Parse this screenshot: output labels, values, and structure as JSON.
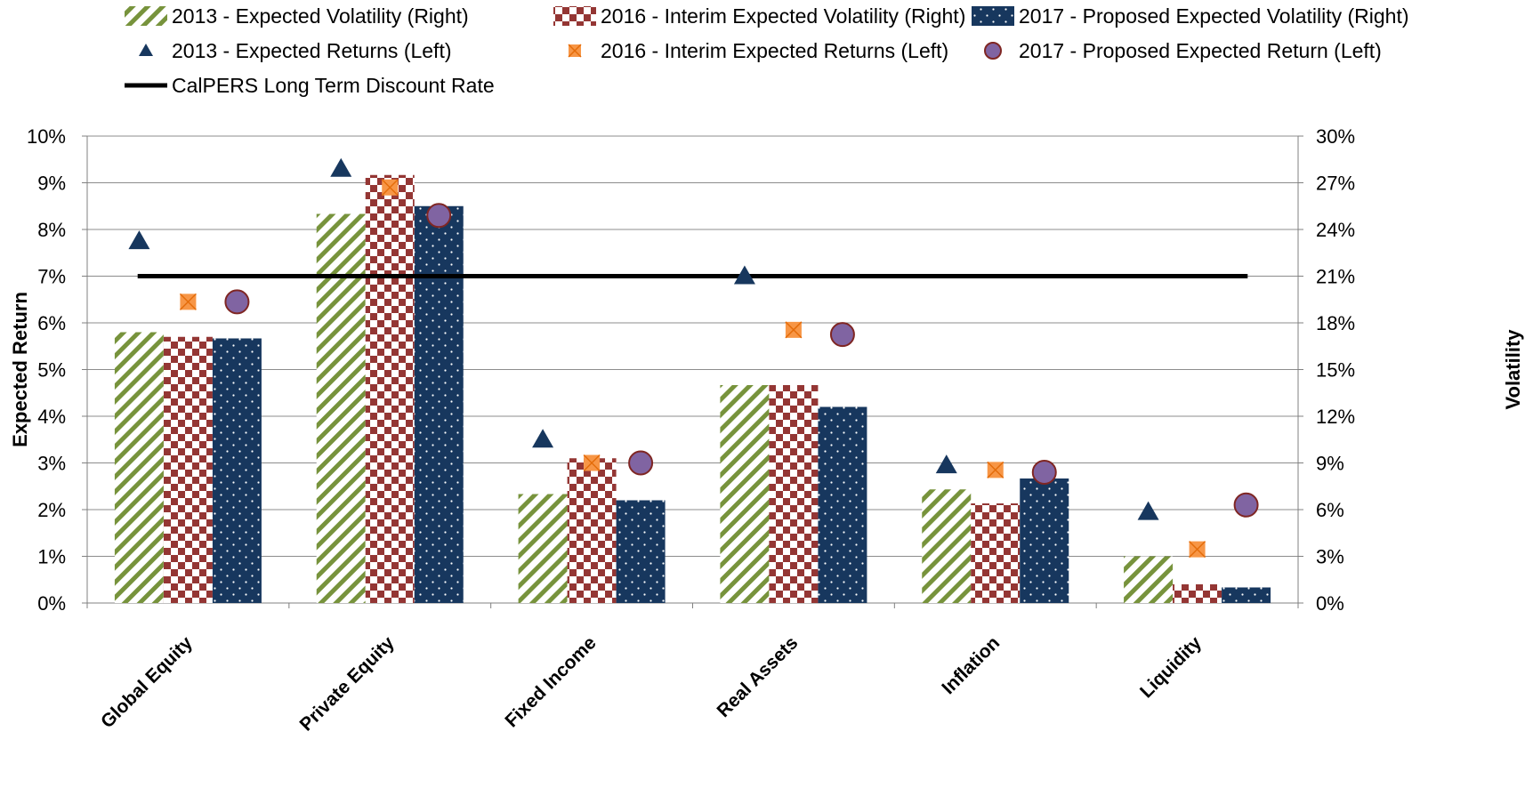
{
  "chart_data": {
    "type": "bar",
    "categories": [
      "Global Equity",
      "Private Equity",
      "Fixed Income",
      "Real Assets",
      "Inflation",
      "Liquidity"
    ],
    "bar_series": [
      {
        "name": "2013 - Expected Volatility (Right)",
        "pattern": "diagonal-stripes",
        "color": "#77933C",
        "values": [
          17.4,
          25.0,
          7.0,
          14.0,
          7.3,
          3.0
        ]
      },
      {
        "name": "2016 - Interim Expected Volatility (Right)",
        "pattern": "checkerboard",
        "color": "#943634",
        "values": [
          17.1,
          27.5,
          9.3,
          14.0,
          6.4,
          1.2
        ]
      },
      {
        "name": "2017 - Proposed Expected Volatility (Right)",
        "pattern": "dots",
        "color": "#17375E",
        "values": [
          17.0,
          25.5,
          6.6,
          12.6,
          8.0,
          1.0
        ]
      }
    ],
    "marker_series": [
      {
        "name": "2013 - Expected Returns (Left)",
        "marker": "triangle",
        "color": "#17375E",
        "values": [
          7.75,
          9.3,
          3.5,
          7.0,
          2.95,
          1.95
        ]
      },
      {
        "name": "2016 - Interim Expected Returns (Left)",
        "marker": "square-x",
        "color": "#F79646",
        "values": [
          6.45,
          8.9,
          3.0,
          5.85,
          2.85,
          1.15
        ]
      },
      {
        "name": "2017 - Proposed Expected Return (Left)",
        "marker": "circle",
        "color": "#8064A2",
        "values": [
          6.45,
          8.3,
          3.0,
          5.75,
          2.8,
          2.1
        ]
      }
    ],
    "line_series": [
      {
        "name": "CalPERS Long Term Discount Rate",
        "color": "#000000",
        "value": 7.0
      }
    ],
    "left_axis": {
      "label": "Expected Return",
      "min": 0,
      "max": 10,
      "step": 1,
      "ticks": [
        "0%",
        "1%",
        "2%",
        "3%",
        "4%",
        "5%",
        "6%",
        "7%",
        "8%",
        "9%",
        "10%"
      ]
    },
    "right_axis": {
      "label": "Volatility",
      "min": 0,
      "max": 30,
      "step": 3,
      "ticks": [
        "0%",
        "3%",
        "6%",
        "9%",
        "12%",
        "15%",
        "18%",
        "21%",
        "24%",
        "27%",
        "30%"
      ]
    },
    "grid": true,
    "legend_position": "top"
  }
}
